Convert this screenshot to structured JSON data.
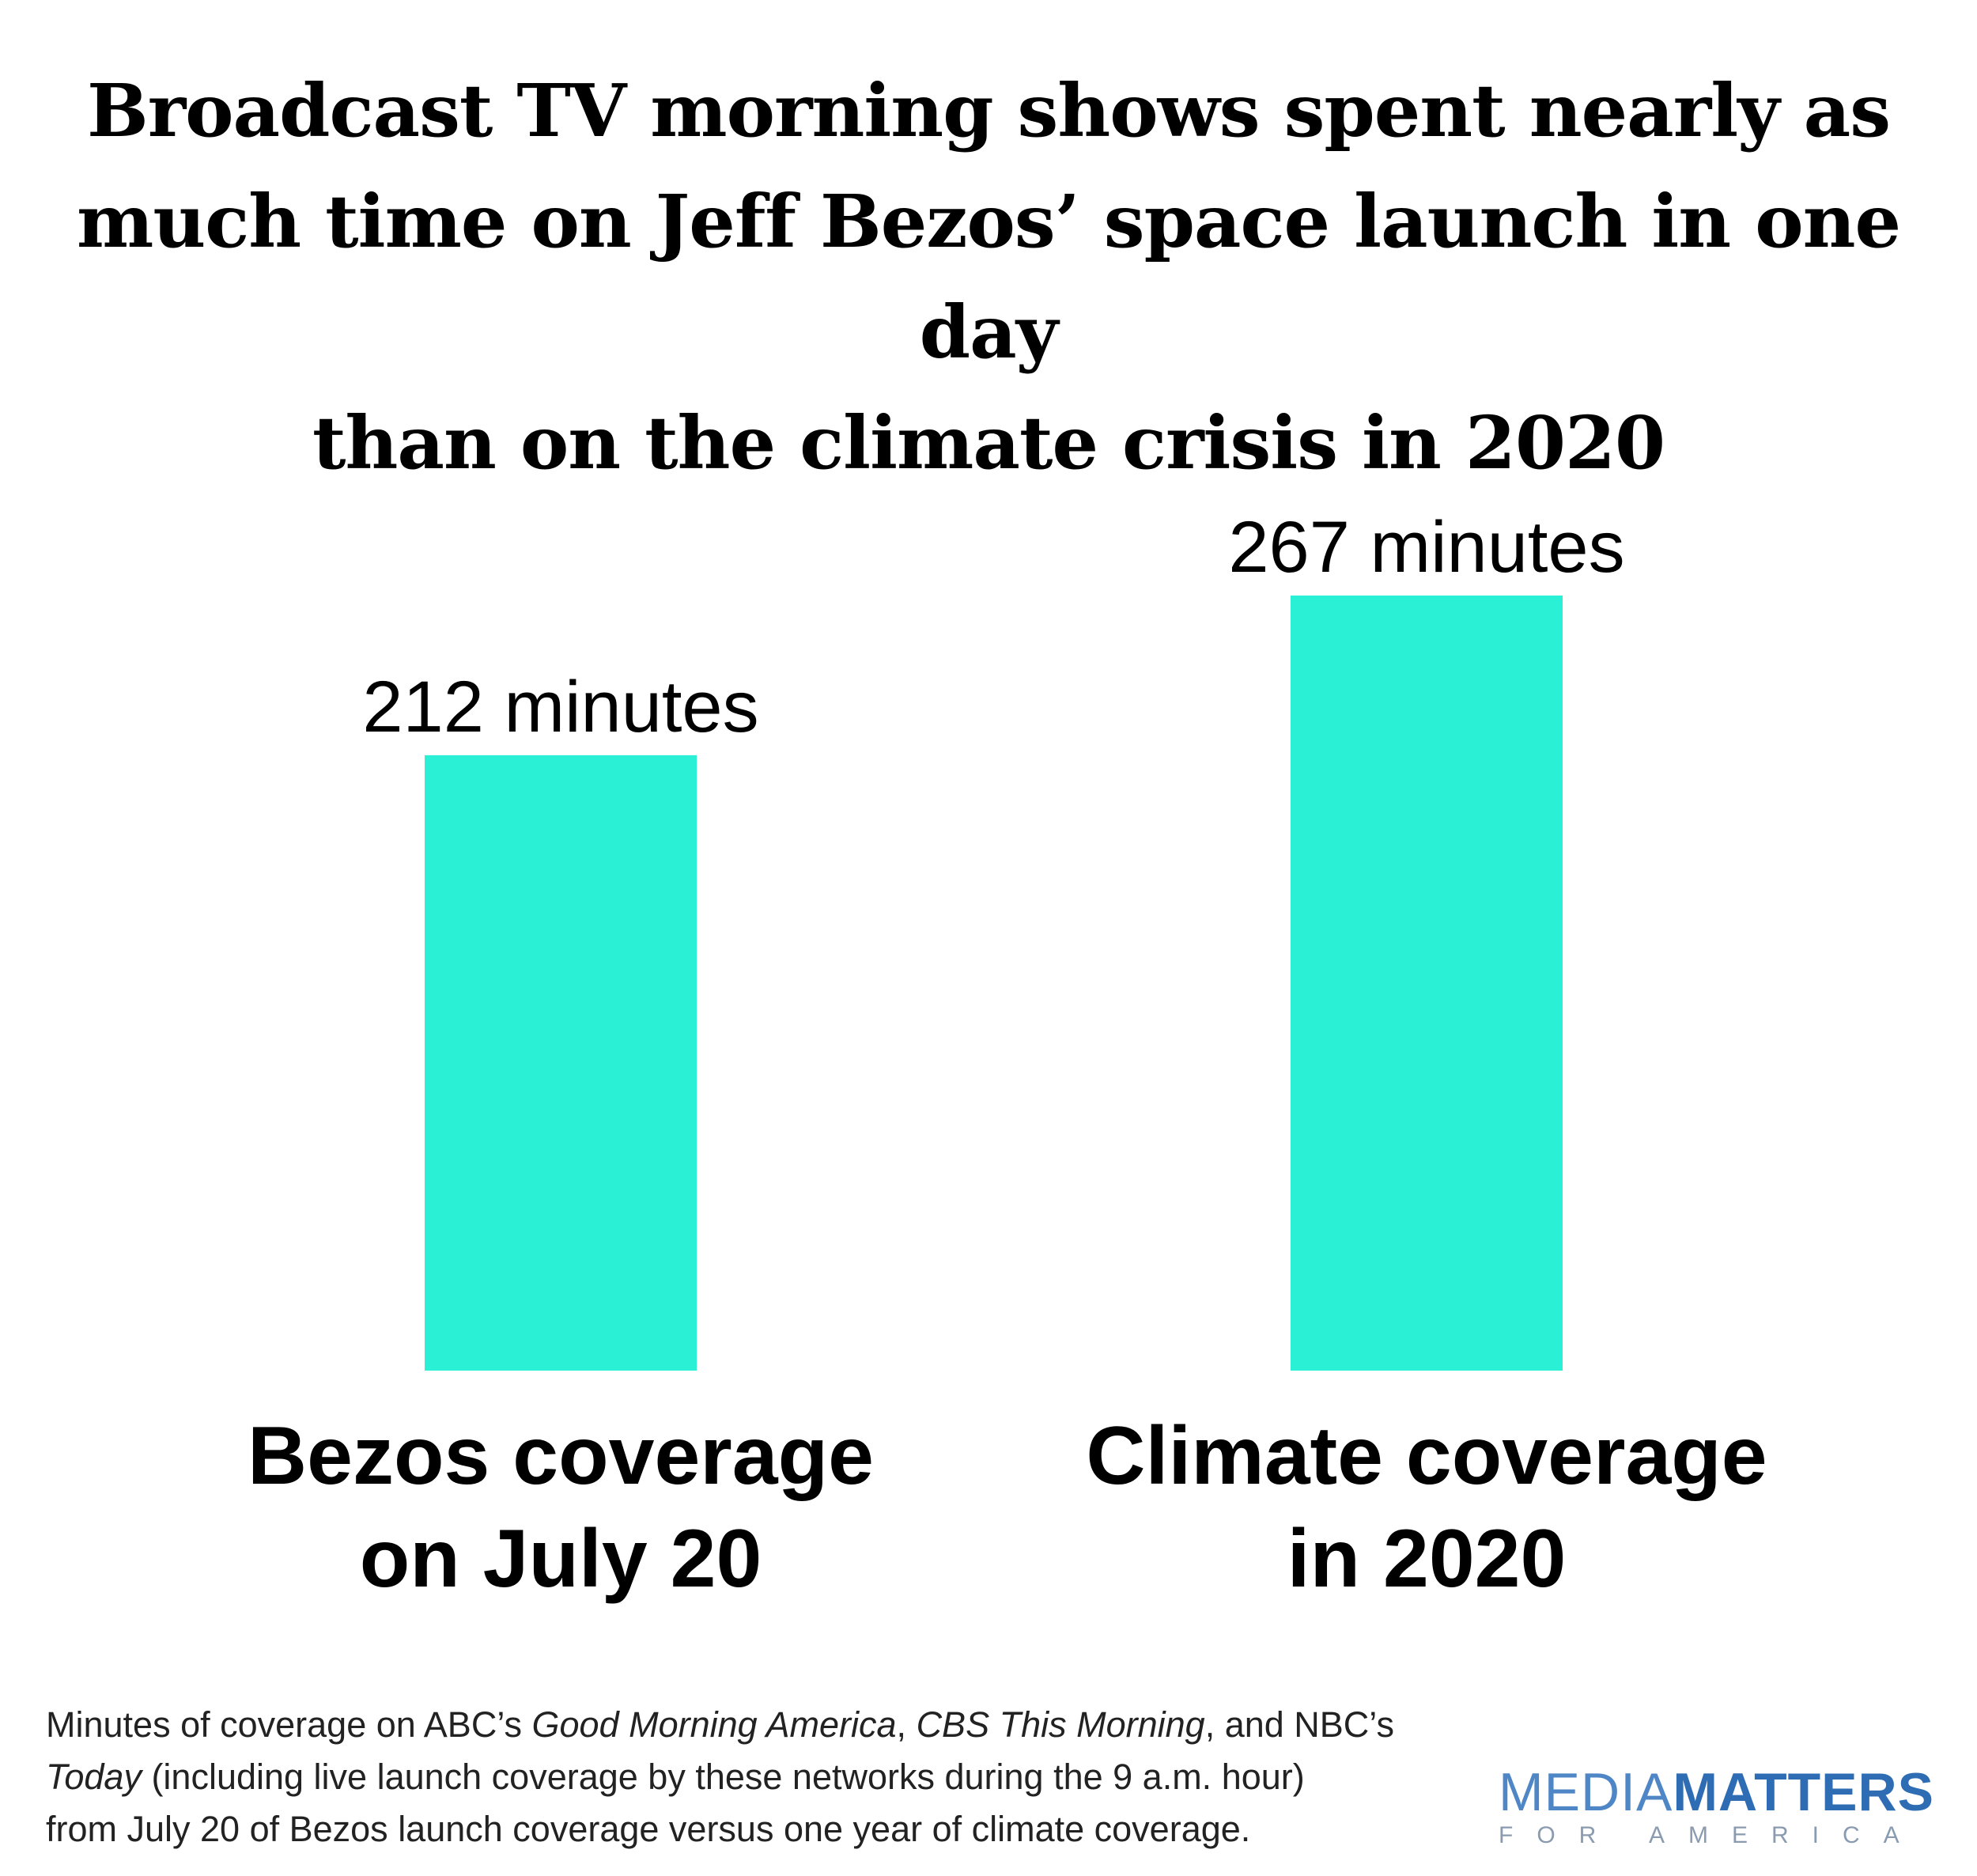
{
  "title_lines": [
    "Broadcast TV morning shows spent nearly as",
    "much time on Jeff Bezos’ space launch in one day",
    "than on the climate crisis in 2020"
  ],
  "colors": {
    "bar": "#2af0d6",
    "text": "#000000",
    "logo_media": "#4f86c6",
    "logo_matters": "#2e6db4"
  },
  "chart_data": {
    "type": "bar",
    "title": "Broadcast TV morning shows spent nearly as much time on Jeff Bezos’ space launch in one day than on the climate crisis in 2020",
    "categories": [
      [
        "Bezos coverage",
        "on July 20"
      ],
      [
        "Climate coverage",
        "in 2020"
      ]
    ],
    "values": [
      212,
      267
    ],
    "value_labels": [
      "212 minutes",
      "267 minutes"
    ],
    "unit": "minutes",
    "xlabel": "",
    "ylabel": "",
    "ylim": [
      0,
      267
    ],
    "grid": false
  },
  "footnote": {
    "line1_a": "Minutes of coverage on ABC’s ",
    "line1_b": "Good Morning America",
    "line1_c": ", ",
    "line1_d": "CBS This Morning",
    "line1_e": ", and NBC’s",
    "line2_a": "Today",
    "line2_b": " (including live launch coverage by these networks during the 9 a.m. hour)",
    "line3": "from July 20 of Bezos launch coverage versus one year of climate coverage."
  },
  "logo": {
    "media": "MEDIA",
    "matters": "MATTERS",
    "sub": "FOR AMERICA"
  }
}
